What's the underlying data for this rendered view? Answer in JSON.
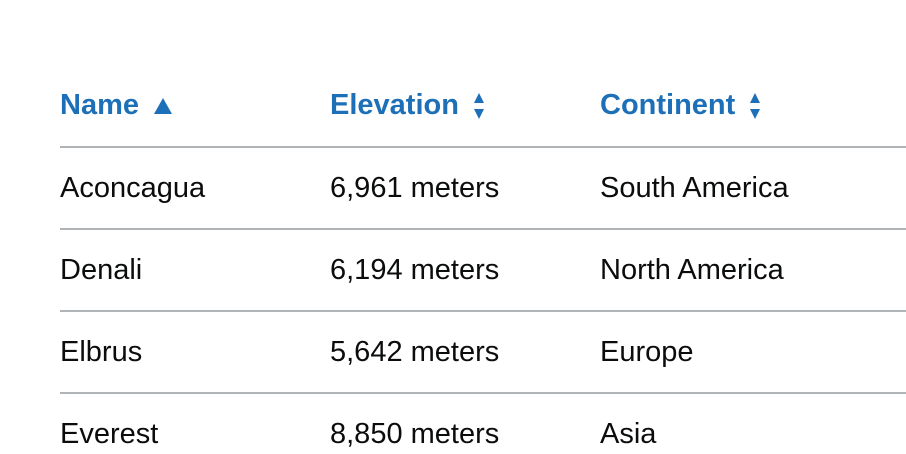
{
  "table": {
    "headers": [
      {
        "label": "Name",
        "sort": "ascending"
      },
      {
        "label": "Elevation",
        "sort": "none"
      },
      {
        "label": "Continent",
        "sort": "none"
      }
    ],
    "rows": [
      {
        "name": "Aconcagua",
        "elevation": "6,961 meters",
        "continent": "South America"
      },
      {
        "name": "Denali",
        "elevation": "6,194 meters",
        "continent": "North America"
      },
      {
        "name": "Elbrus",
        "elevation": "5,642 meters",
        "continent": "Europe"
      },
      {
        "name": "Everest",
        "elevation": "8,850 meters",
        "continent": "Asia"
      }
    ]
  },
  "colors": {
    "link": "#1d70b8",
    "text": "#0b0c0c",
    "border": "#b1b4b6"
  }
}
